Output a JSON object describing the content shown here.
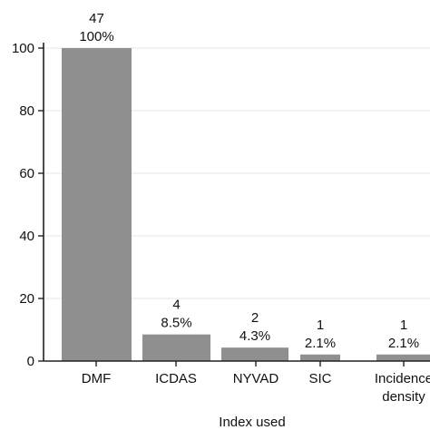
{
  "colors": {
    "bar": "#8f8f8f",
    "axis": "#222222",
    "grid": "#e6e6e6",
    "text": "#111111"
  },
  "chart_data": {
    "type": "bar",
    "categories": [
      "DMF",
      "ICDAS",
      "NYVAD",
      "SIC",
      "Incidence density"
    ],
    "category_display_lines": [
      [
        "DMF"
      ],
      [
        "ICDAS"
      ],
      [
        "NYVAD"
      ],
      [
        "SIC"
      ],
      [
        "Incidence",
        "density"
      ]
    ],
    "values": [
      100,
      8.5,
      4.3,
      2.1,
      2.1
    ],
    "counts": [
      "47",
      "4",
      "2",
      "1",
      "1"
    ],
    "percent_labels": [
      "100%",
      "8.5%",
      "4.3%",
      "2.1%",
      "2.1%"
    ],
    "title": "",
    "xlabel": "Index used",
    "ylabel": "",
    "ylim": [
      0,
      100
    ],
    "yticks": [
      0,
      20,
      40,
      60,
      80,
      100
    ],
    "grid": "horizontal",
    "legend": "none"
  }
}
